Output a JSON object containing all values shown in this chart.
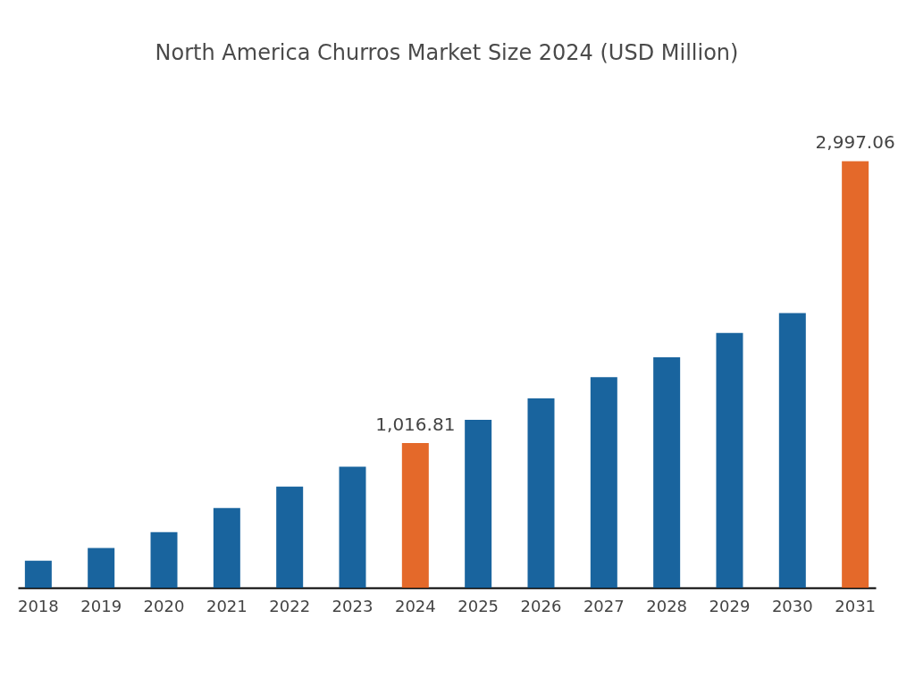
{
  "chart_data": {
    "type": "bar",
    "title": "North America Churros Market Size 2024 (USD Million)",
    "categories": [
      "2018",
      "2019",
      "2020",
      "2021",
      "2022",
      "2023",
      "2024",
      "2025",
      "2026",
      "2027",
      "2028",
      "2029",
      "2030",
      "2031"
    ],
    "values": [
      190,
      280,
      390,
      560,
      710,
      850,
      1016.81,
      1180,
      1330,
      1480,
      1620,
      1790,
      1930,
      2997.06
    ],
    "value_labels": [
      null,
      null,
      null,
      null,
      null,
      null,
      "1,016.81",
      null,
      null,
      null,
      null,
      null,
      null,
      "2,997.06"
    ],
    "colors": [
      "#19649e",
      "#19649e",
      "#19649e",
      "#19649e",
      "#19649e",
      "#19649e",
      "#e4692a",
      "#19649e",
      "#19649e",
      "#19649e",
      "#19649e",
      "#19649e",
      "#19649e",
      "#e4692a"
    ],
    "ylim": [
      0,
      3000
    ],
    "tick_labels": "x",
    "grid": false
  }
}
